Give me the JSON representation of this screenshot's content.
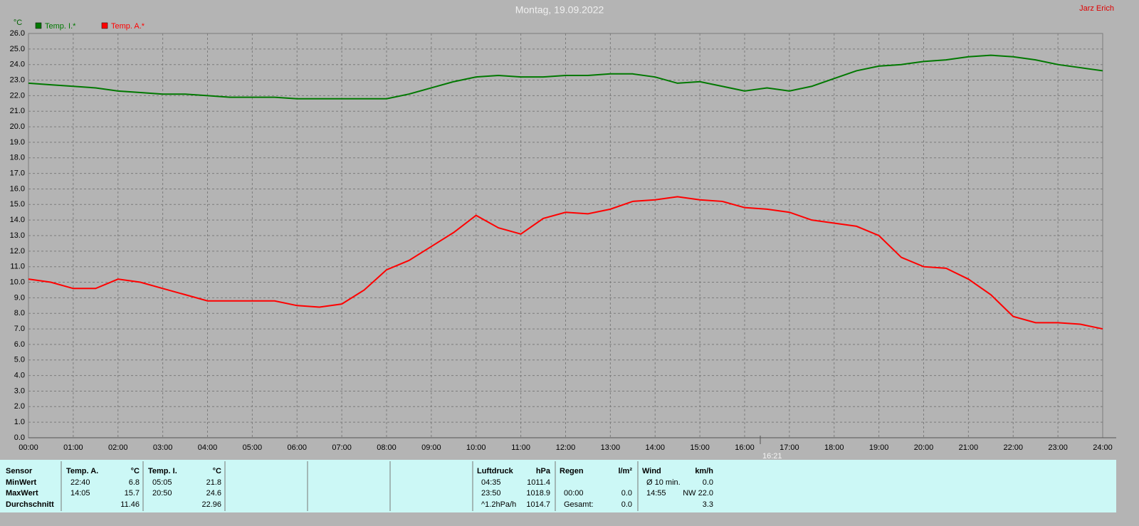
{
  "chart_data": {
    "type": "line",
    "title": "Montag, 19.09.2022",
    "author": "Jarz Erich",
    "y_label": "°C",
    "marker": {
      "value": 16.35,
      "label": "16:21"
    },
    "x": [
      0,
      0.5,
      1,
      1.5,
      2,
      2.5,
      3,
      3.5,
      4,
      4.5,
      5,
      5.5,
      6,
      6.5,
      7,
      7.5,
      8,
      8.5,
      9,
      9.5,
      10,
      10.5,
      11,
      11.5,
      12,
      12.5,
      13,
      13.5,
      14,
      14.5,
      15,
      15.5,
      16,
      16.5,
      17,
      17.5,
      18,
      18.5,
      19,
      19.5,
      20,
      20.5,
      21,
      21.5,
      22,
      22.5,
      23,
      23.5,
      24
    ],
    "series": [
      {
        "name": "Temp. I.*",
        "color": "#007800",
        "values": [
          22.8,
          22.7,
          22.6,
          22.5,
          22.3,
          22.2,
          22.1,
          22.1,
          22.0,
          21.9,
          21.9,
          21.9,
          21.8,
          21.8,
          21.8,
          21.8,
          21.8,
          22.1,
          22.5,
          22.9,
          23.2,
          23.3,
          23.2,
          23.2,
          23.3,
          23.3,
          23.4,
          23.4,
          23.2,
          22.8,
          22.9,
          22.6,
          22.3,
          22.5,
          22.3,
          22.6,
          23.1,
          23.6,
          23.9,
          24.0,
          24.2,
          24.3,
          24.5,
          24.6,
          24.5,
          24.3,
          24.0,
          23.8,
          23.6
        ]
      },
      {
        "name": "Temp. A.*",
        "color": "#ff0000",
        "values": [
          10.2,
          10.0,
          9.6,
          9.6,
          10.2,
          10.0,
          9.6,
          9.2,
          8.8,
          8.8,
          8.8,
          8.8,
          8.5,
          8.4,
          8.6,
          9.5,
          10.8,
          11.4,
          12.3,
          13.2,
          14.3,
          13.5,
          13.1,
          14.1,
          14.5,
          14.4,
          14.7,
          15.2,
          15.3,
          15.5,
          15.3,
          15.2,
          14.8,
          14.7,
          14.5,
          14.0,
          13.8,
          13.6,
          13.0,
          11.6,
          11.0,
          10.9,
          10.2,
          9.2,
          7.8,
          7.4,
          7.4,
          7.3,
          7.0
        ]
      }
    ],
    "xlim": [
      0,
      24
    ],
    "xticks": [
      {
        "value": 0,
        "label": "00:00"
      },
      {
        "value": 1,
        "label": "01:00"
      },
      {
        "value": 2,
        "label": "02:00"
      },
      {
        "value": 3,
        "label": "03:00"
      },
      {
        "value": 4,
        "label": "04:00"
      },
      {
        "value": 5,
        "label": "05:00"
      },
      {
        "value": 6,
        "label": "06:00"
      },
      {
        "value": 7,
        "label": "07:00"
      },
      {
        "value": 8,
        "label": "08:00"
      },
      {
        "value": 9,
        "label": "09:00"
      },
      {
        "value": 10,
        "label": "10:00"
      },
      {
        "value": 11,
        "label": "11:00"
      },
      {
        "value": 12,
        "label": "12:00"
      },
      {
        "value": 13,
        "label": "13:00"
      },
      {
        "value": 14,
        "label": "14:00"
      },
      {
        "value": 15,
        "label": "15:00"
      },
      {
        "value": 16,
        "label": "16:00"
      },
      {
        "value": 17,
        "label": "17:00"
      },
      {
        "value": 18,
        "label": "18:00"
      },
      {
        "value": 19,
        "label": "19:00"
      },
      {
        "value": 20,
        "label": "20:00"
      },
      {
        "value": 21,
        "label": "21:00"
      },
      {
        "value": 22,
        "label": "22:00"
      },
      {
        "value": 23,
        "label": "23:00"
      },
      {
        "value": 24,
        "label": "24:00"
      }
    ],
    "ylim": [
      0,
      26
    ],
    "yticks": [
      {
        "value": 0,
        "label": "0.0"
      },
      {
        "value": 1,
        "label": "1.0"
      },
      {
        "value": 2,
        "label": "2.0"
      },
      {
        "value": 3,
        "label": "3.0"
      },
      {
        "value": 4,
        "label": "4.0"
      },
      {
        "value": 5,
        "label": "5.0"
      },
      {
        "value": 6,
        "label": "6.0"
      },
      {
        "value": 7,
        "label": "7.0"
      },
      {
        "value": 8,
        "label": "8.0"
      },
      {
        "value": 9,
        "label": "9.0"
      },
      {
        "value": 10,
        "label": "10.0"
      },
      {
        "value": 11,
        "label": "11.0"
      },
      {
        "value": 12,
        "label": "12.0"
      },
      {
        "value": 13,
        "label": "13.0"
      },
      {
        "value": 14,
        "label": "14.0"
      },
      {
        "value": 15,
        "label": "15.0"
      },
      {
        "value": 16,
        "label": "16.0"
      },
      {
        "value": 17,
        "label": "17.0"
      },
      {
        "value": 18,
        "label": "18.0"
      },
      {
        "value": 19,
        "label": "19.0"
      },
      {
        "value": 20,
        "label": "20.0"
      },
      {
        "value": 21,
        "label": "21.0"
      },
      {
        "value": 22,
        "label": "22.0"
      },
      {
        "value": 23,
        "label": "23.0"
      },
      {
        "value": 24,
        "label": "24.0"
      },
      {
        "value": 25,
        "label": "25.0"
      },
      {
        "value": 26,
        "label": "26.0"
      }
    ],
    "grid": true
  },
  "table": {
    "row_labels": [
      "Sensor",
      "MinWert",
      "MaxWert",
      "Durchschnitt"
    ],
    "groups": [
      {
        "header": "Temp. A.",
        "unit": "°C",
        "rows": [
          [
            "22:40",
            "6.8"
          ],
          [
            "14:05",
            "15.7"
          ],
          [
            null,
            "11.46"
          ]
        ]
      },
      {
        "header": "Temp. I.",
        "unit": "°C",
        "rows": [
          [
            "05:05",
            "21.8"
          ],
          [
            "20:50",
            "24.6"
          ],
          [
            null,
            "22.96"
          ]
        ]
      },
      {
        "header": "Luftdruck",
        "unit": "hPa",
        "rows": [
          [
            "04:35",
            "1011.4"
          ],
          [
            "23:50",
            "1018.9"
          ],
          [
            "^1.2hPa/h",
            "1014.7"
          ]
        ]
      },
      {
        "header": "Regen",
        "unit": "l/m²",
        "rows": [
          [
            null,
            null
          ],
          [
            "00:00",
            "0.0"
          ],
          [
            "Gesamt:",
            "0.0"
          ]
        ]
      },
      {
        "header": "Wind",
        "unit": "km/h",
        "rows": [
          [
            "Ø 10 min.",
            "0.0"
          ],
          [
            "14:55",
            "NW 22.0"
          ],
          [
            null,
            "3.3"
          ]
        ]
      }
    ]
  }
}
